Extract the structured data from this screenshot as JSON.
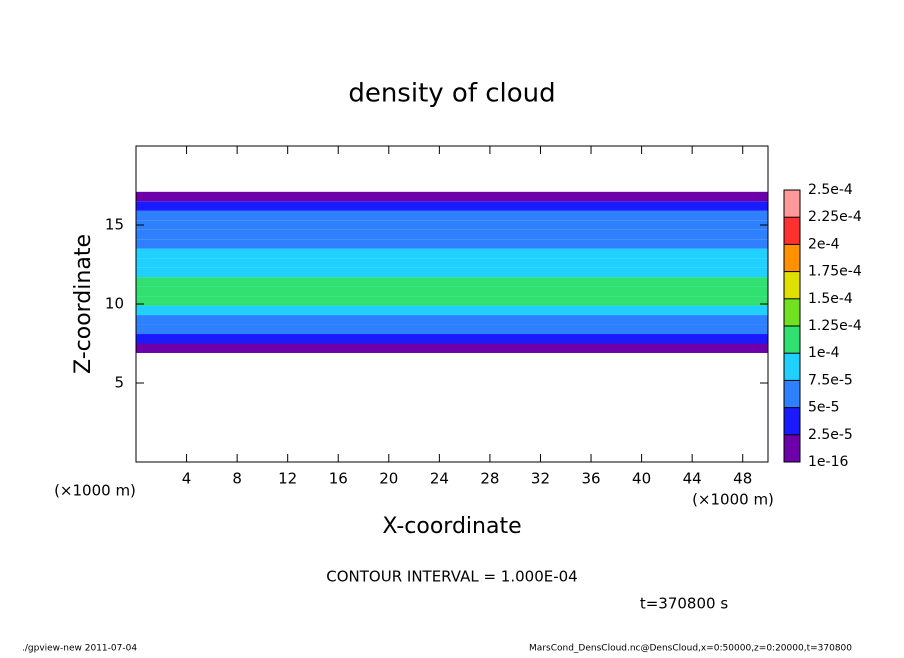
{
  "chart_data": {
    "type": "profile-contour",
    "title": "density of cloud",
    "x_label": "X-coordinate",
    "y_label": "Z-coordinate",
    "x_unit": "(×1000 m)",
    "y_unit": "(×1000 m)",
    "xlim": [
      0,
      50
    ],
    "xticks": [
      4,
      8,
      12,
      16,
      20,
      24,
      28,
      32,
      36,
      40,
      44,
      48
    ],
    "ylim": [
      0,
      20
    ],
    "yticks": [
      5,
      10,
      15
    ],
    "z": [
      7.2,
      7.8,
      8.4,
      9.0,
      9.6,
      10.2,
      10.8,
      11.4,
      12.0,
      12.6,
      13.2,
      13.8,
      14.4,
      15.0,
      15.6,
      16.2,
      16.8
    ],
    "values": [
      1e-05,
      3e-05,
      5e-05,
      7e-05,
      9e-05,
      0.000105,
      0.000105,
      0.0001,
      9e-05,
      8e-05,
      7.5e-05,
      7e-05,
      6.5e-05,
      6e-05,
      5e-05,
      3e-05,
      1e-05
    ],
    "colorbar_levels": [
      {
        "value": 1e-16,
        "label": "1e-16"
      },
      {
        "value": 2.5e-05,
        "label": "2.5e-5"
      },
      {
        "value": 5e-05,
        "label": "5e-5"
      },
      {
        "value": 7.5e-05,
        "label": "7.5e-5"
      },
      {
        "value": 0.0001,
        "label": "1e-4"
      },
      {
        "value": 0.000125,
        "label": "1.25e-4"
      },
      {
        "value": 0.00015,
        "label": "1.5e-4"
      },
      {
        "value": 0.000175,
        "label": "1.75e-4"
      },
      {
        "value": 0.0002,
        "label": "2e-4"
      },
      {
        "value": 0.000225,
        "label": "2.25e-4"
      },
      {
        "value": 0.00025,
        "label": "2.5e-4"
      }
    ],
    "colorbar_colors": [
      "#6e00aa",
      "#1a1aff",
      "#2f80ff",
      "#20d0ff",
      "#30e070",
      "#70e020",
      "#e0e000",
      "#ff9000",
      "#ff3030",
      "#ff9a9a"
    ],
    "contour_note": "CONTOUR INTERVAL = 1.000E-04",
    "time_label": "t=370800 s",
    "footer_left": "./gpview-new  2011-07-04",
    "footer_right": "MarsCond_DensCloud.nc@DensCloud,x=0:50000,z=0:20000,t=370800"
  }
}
